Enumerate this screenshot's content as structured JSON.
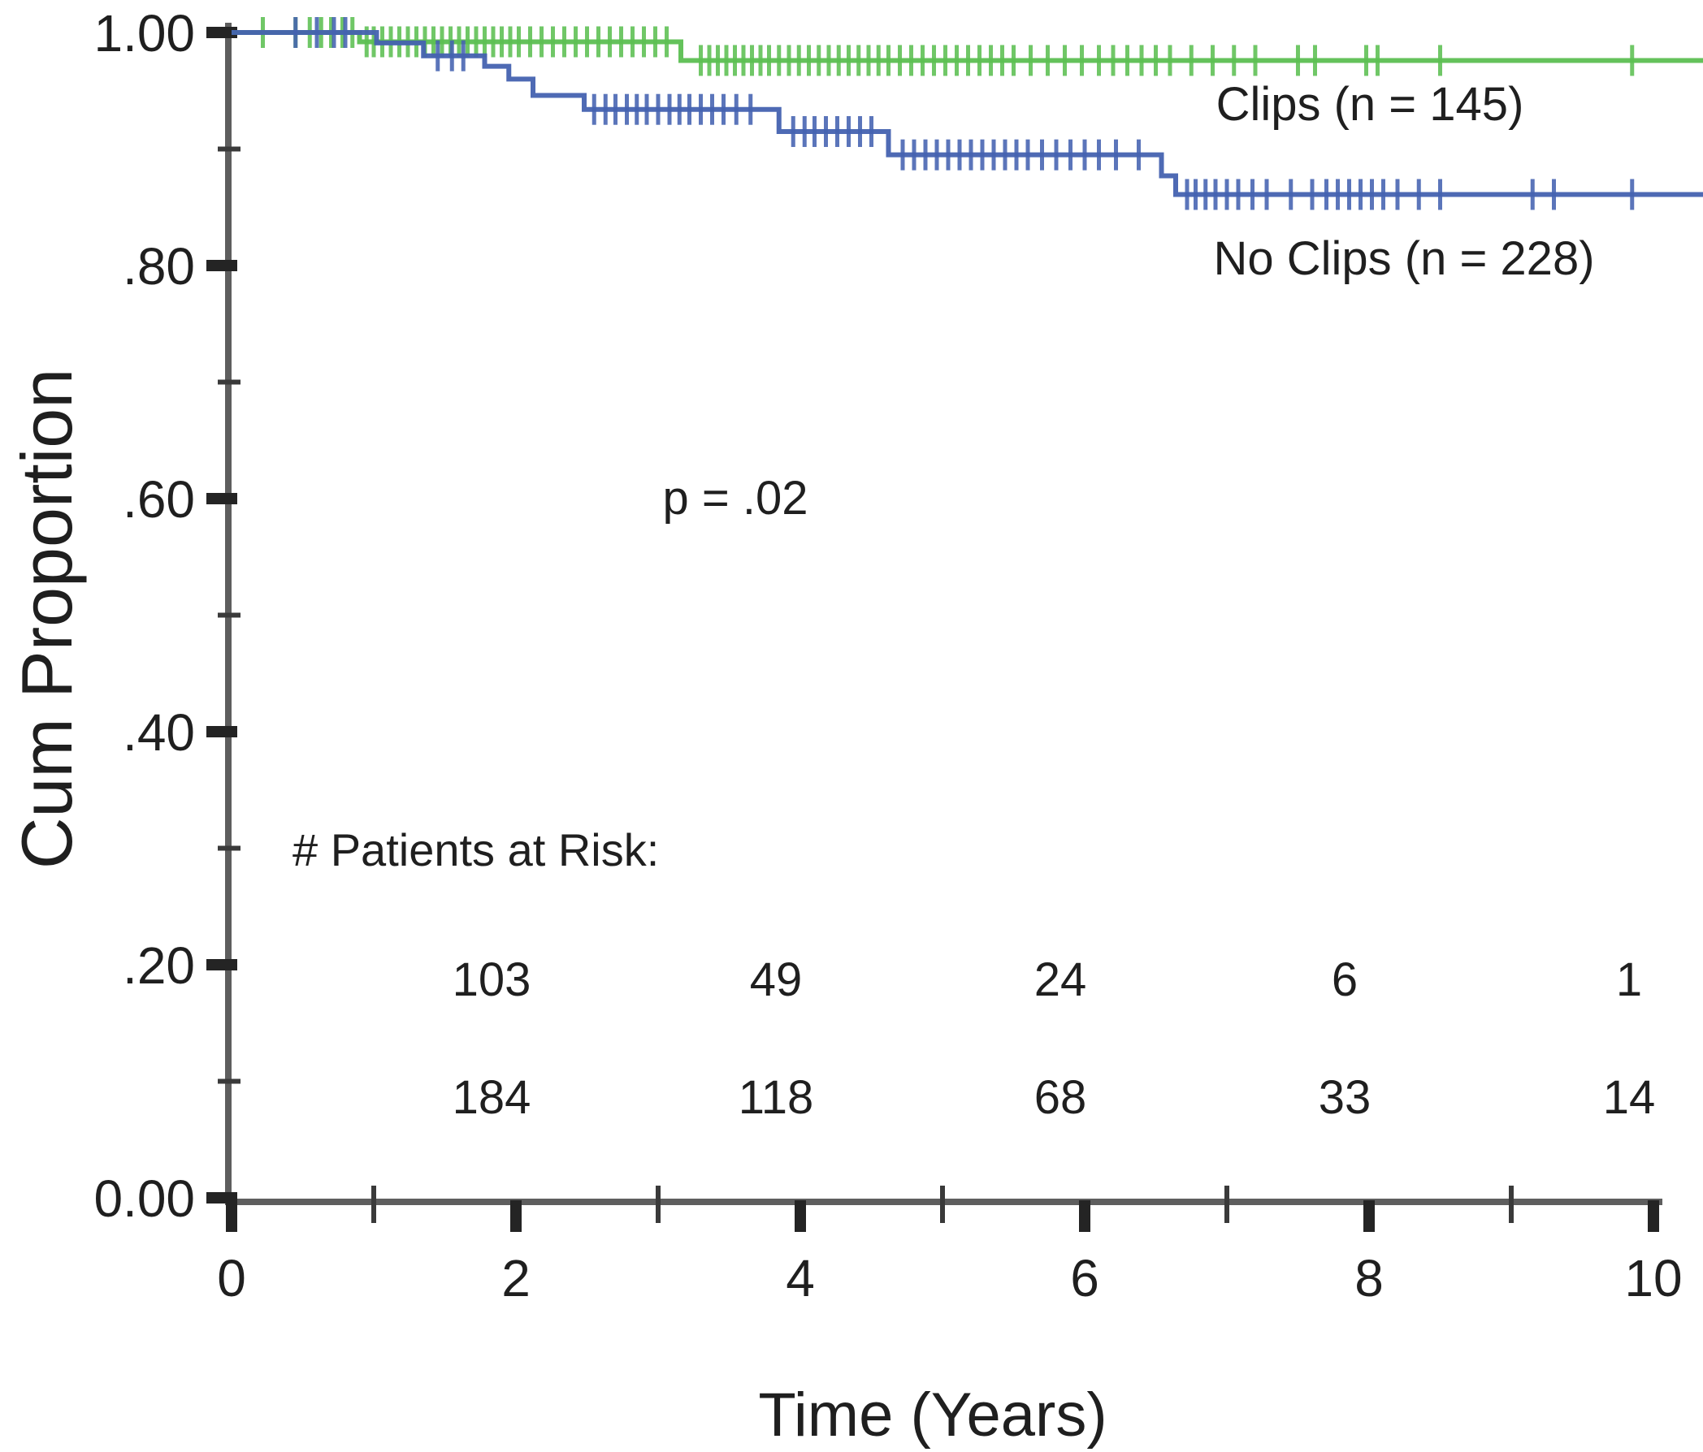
{
  "chart_data": {
    "type": "line",
    "subtype": "kaplan_meier_step",
    "title": "",
    "xlabel": "Time (Years)",
    "ylabel": "Cum Proportion",
    "xlim": [
      0,
      10.35
    ],
    "ylim": [
      0.0,
      1.0
    ],
    "grid": false,
    "legend_position": "inline-right",
    "annotations": {
      "p_value": "p = .02"
    },
    "axis_color": "#5e5e5e",
    "tick_color": "#242424",
    "x_major_ticks": [
      {
        "t": 0,
        "label": "0"
      },
      {
        "t": 2,
        "label": "2"
      },
      {
        "t": 4,
        "label": "4"
      },
      {
        "t": 6,
        "label": "6"
      },
      {
        "t": 8,
        "label": "8"
      },
      {
        "t": 10,
        "label": "10"
      }
    ],
    "x_minor_ticks": [
      1,
      3,
      5,
      7,
      9
    ],
    "y_major_ticks": [
      {
        "v": 1.0,
        "label": "1.00"
      },
      {
        "v": 0.8,
        "label": ".80"
      },
      {
        "v": 0.6,
        "label": ".60"
      },
      {
        "v": 0.4,
        "label": ".40"
      },
      {
        "v": 0.2,
        "label": ".20"
      },
      {
        "v": 0.0,
        "label": "0.00"
      }
    ],
    "y_minor_ticks": [
      0.9,
      0.7,
      0.5,
      0.3,
      0.1
    ],
    "series": [
      {
        "name": "Clips",
        "label": "Clips (n = 145)",
        "n": 145,
        "color": "#5cbf52",
        "end_x": 10.35,
        "steps": [
          [
            0,
            1.0
          ],
          [
            0.9,
            0.992
          ],
          [
            3.16,
            0.976
          ]
        ],
        "censor_times": [
          0.22,
          0.45,
          0.55,
          0.63,
          0.7,
          0.78,
          0.85,
          0.95,
          1.0,
          1.06,
          1.12,
          1.18,
          1.24,
          1.3,
          1.36,
          1.42,
          1.48,
          1.54,
          1.6,
          1.66,
          1.72,
          1.78,
          1.84,
          1.9,
          1.96,
          2.02,
          2.1,
          2.18,
          2.26,
          2.34,
          2.42,
          2.5,
          2.58,
          2.66,
          2.74,
          2.82,
          2.9,
          2.98,
          3.06,
          3.3,
          3.36,
          3.42,
          3.48,
          3.54,
          3.6,
          3.66,
          3.72,
          3.78,
          3.85,
          3.92,
          3.99,
          4.06,
          4.13,
          4.2,
          4.27,
          4.34,
          4.41,
          4.48,
          4.55,
          4.62,
          4.7,
          4.78,
          4.86,
          4.94,
          5.02,
          5.1,
          5.18,
          5.26,
          5.34,
          5.42,
          5.5,
          5.62,
          5.74,
          5.86,
          5.98,
          6.1,
          6.2,
          6.3,
          6.4,
          6.5,
          6.6,
          6.75,
          6.9,
          7.05,
          7.2,
          7.5,
          7.62,
          7.98,
          8.06,
          8.5,
          9.85
        ]
      },
      {
        "name": "No Clips",
        "label": "No Clips (n = 228)",
        "n": 228,
        "color": "#4462b0",
        "end_x": 10.35,
        "steps": [
          [
            0,
            1.0
          ],
          [
            1.02,
            0.991
          ],
          [
            1.35,
            0.98
          ],
          [
            1.78,
            0.971
          ],
          [
            1.95,
            0.96
          ],
          [
            2.12,
            0.946
          ],
          [
            2.48,
            0.934
          ],
          [
            3.85,
            0.915
          ],
          [
            4.62,
            0.895
          ],
          [
            6.54,
            0.877
          ],
          [
            6.64,
            0.861
          ]
        ],
        "censor_times": [
          0.45,
          0.6,
          0.72,
          0.8,
          1.45,
          1.55,
          1.63,
          2.55,
          2.63,
          2.7,
          2.78,
          2.85,
          2.92,
          3.0,
          3.08,
          3.15,
          3.22,
          3.3,
          3.38,
          3.46,
          3.55,
          3.65,
          3.95,
          4.03,
          4.1,
          4.18,
          4.26,
          4.34,
          4.42,
          4.5,
          4.72,
          4.8,
          4.88,
          4.96,
          5.04,
          5.12,
          5.2,
          5.28,
          5.36,
          5.44,
          5.52,
          5.6,
          5.7,
          5.8,
          5.9,
          6.0,
          6.1,
          6.22,
          6.38,
          6.72,
          6.78,
          6.85,
          6.92,
          7.0,
          7.08,
          7.18,
          7.28,
          7.45,
          7.6,
          7.7,
          7.78,
          7.86,
          7.94,
          8.02,
          8.1,
          8.2,
          8.35,
          8.5,
          9.15,
          9.3,
          9.85
        ]
      }
    ],
    "at_risk": {
      "heading": "# Patients at Risk:",
      "times": [
        2,
        4,
        6,
        8,
        10
      ],
      "rows": [
        {
          "series": "Clips",
          "counts": [
            103,
            49,
            24,
            6,
            1
          ]
        },
        {
          "series": "No Clips",
          "counts": [
            184,
            118,
            68,
            33,
            14
          ]
        }
      ]
    }
  }
}
